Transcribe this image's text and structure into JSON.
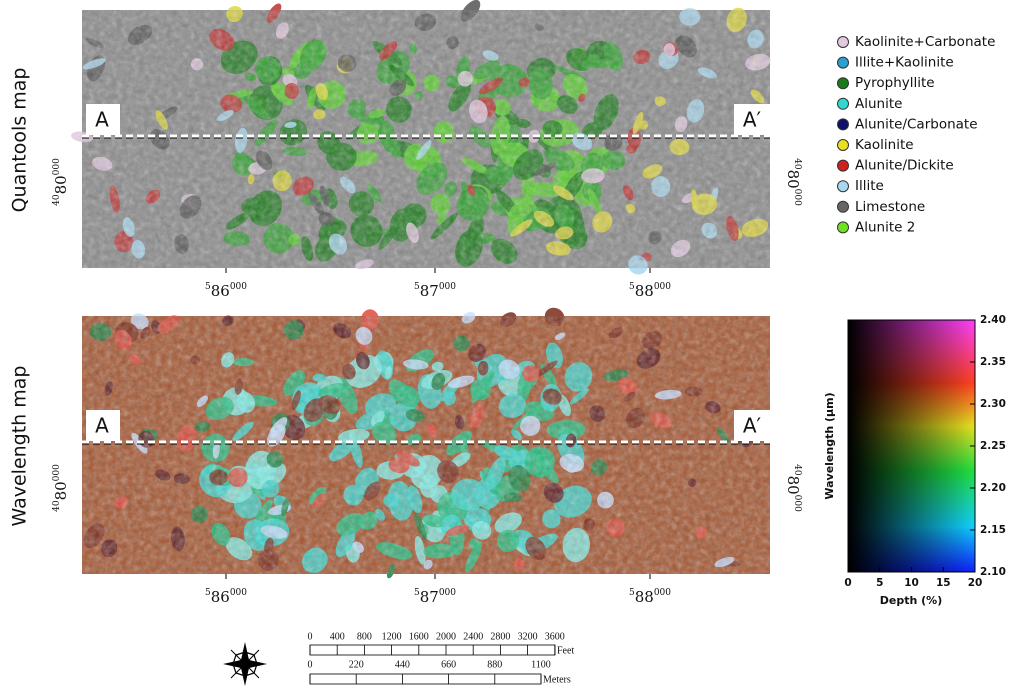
{
  "panels": [
    {
      "title": "Quantools map",
      "start": "A",
      "end": "A′",
      "xlabels": [
        {
          "pre": "5",
          "main": "86",
          "post": "000"
        },
        {
          "pre": "5",
          "main": "87",
          "post": "000"
        },
        {
          "pre": "5",
          "main": "88",
          "post": "000"
        }
      ],
      "ylabel_left": {
        "pre": "40",
        "main": "80",
        "post": "000"
      },
      "ylabel_right": {
        "pre": "40",
        "main": "80",
        "post": "000"
      }
    },
    {
      "title": "Wavelength map",
      "start": "A",
      "end": "A′",
      "xlabels": [
        {
          "pre": "5",
          "main": "86",
          "post": "000"
        },
        {
          "pre": "5",
          "main": "87",
          "post": "000"
        },
        {
          "pre": "5",
          "main": "88",
          "post": "000"
        }
      ],
      "ylabel_left": {
        "pre": "40",
        "main": "80",
        "post": "000"
      },
      "ylabel_right": {
        "pre": "40",
        "main": "80",
        "post": "000"
      }
    }
  ],
  "legend": [
    {
      "name": "Kaolinite+Carbonate",
      "color": "#e2c9e0"
    },
    {
      "name": "Illite+Kaolinite",
      "color": "#2a9fd0"
    },
    {
      "name": "Pyrophyllite",
      "color": "#1a7a1a"
    },
    {
      "name": "Alunite",
      "color": "#30d8d0"
    },
    {
      "name": "Alunite/Carbonate",
      "color": "#10106a"
    },
    {
      "name": "Kaolinite",
      "color": "#e8e020"
    },
    {
      "name": "Alunite/Dickite",
      "color": "#d02020"
    },
    {
      "name": "Illite",
      "color": "#a8d8f0"
    },
    {
      "name": "Limestone",
      "color": "#666666"
    },
    {
      "name": "Alunite 2",
      "color": "#70e020"
    }
  ],
  "colorbar": {
    "ylabel": "Wavelength (μm)",
    "ylim": [
      2.1,
      2.4
    ],
    "yticks": [
      {
        "value": 2.1,
        "label": "2.10"
      },
      2.15,
      {
        "value": 2.2,
        "label": "2.20"
      },
      2.25,
      {
        "value": 2.3,
        "label": "2.30"
      },
      2.35,
      {
        "value": 2.4,
        "label": "2.40"
      }
    ],
    "xlabel": "Depth (%)",
    "xlim": [
      0,
      20
    ],
    "xticks": [
      0,
      5,
      10,
      15,
      20
    ]
  },
  "scalebar": {
    "feet": [
      0,
      400,
      800,
      1200,
      1600,
      2000,
      2400,
      2800,
      3200,
      3600
    ],
    "feet_unit": "Feet",
    "meters": [
      0,
      220,
      440,
      660,
      880,
      1100
    ],
    "meters_unit": "Meters"
  }
}
